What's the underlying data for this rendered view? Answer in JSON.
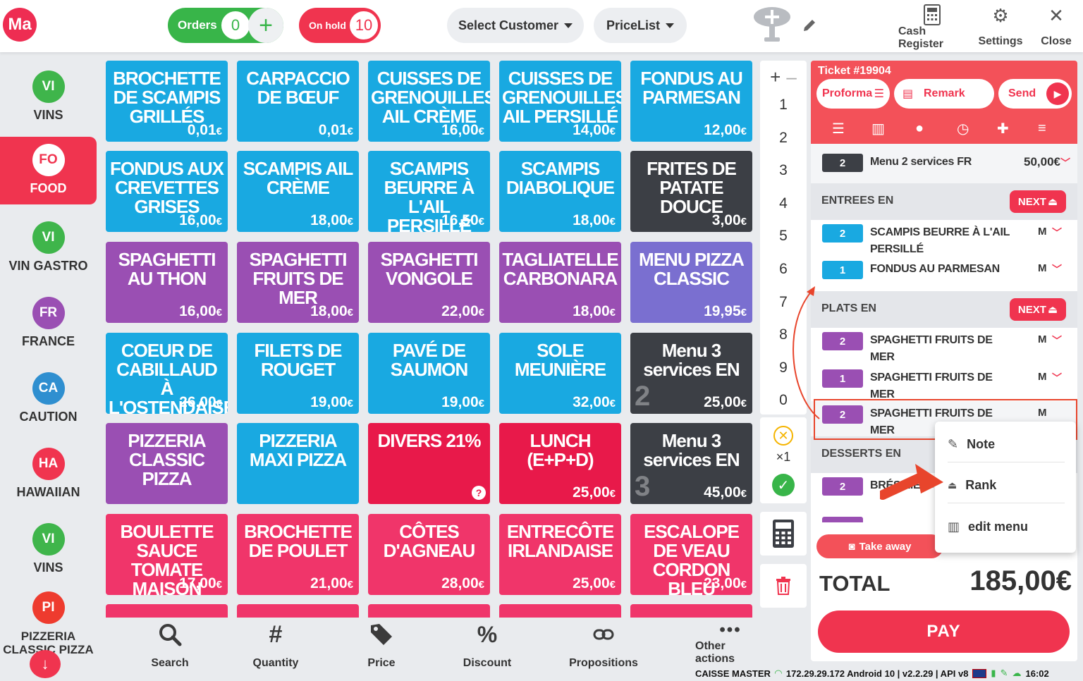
{
  "topbar": {
    "logo": "Ma",
    "orders_label": "Orders",
    "orders_count": "0",
    "onhold_label": "On hold",
    "onhold_count": "10",
    "select_customer": "Select Customer",
    "pricelist": "PriceList",
    "cash_register": "Cash Register",
    "settings": "Settings",
    "close": "Close"
  },
  "categories": [
    {
      "abbr": "VI",
      "name": "VINS",
      "color": "#3fb54b"
    },
    {
      "abbr": "FO",
      "name": "FOOD",
      "color": "#f0344f"
    },
    {
      "abbr": "VI",
      "name": "VIN GASTRO",
      "color": "#3fb54b"
    },
    {
      "abbr": "FR",
      "name": "FRANCE",
      "color": "#9a4fb3"
    },
    {
      "abbr": "CA",
      "name": "CAUTION",
      "color": "#2f8fd0"
    },
    {
      "abbr": "HA",
      "name": "HAWAIIAN",
      "color": "#f0344f"
    },
    {
      "abbr": "VI",
      "name": "VINS",
      "color": "#3fb54b"
    },
    {
      "abbr": "PI",
      "name": "PIZZERIA CLASSIC PIZZA",
      "color": "#ee3b2e"
    }
  ],
  "products": [
    {
      "name": "BROCHETTE DE SCAMPIS GRILLÉS",
      "price": "0,01",
      "cur": "€",
      "color": "#19a9e1"
    },
    {
      "name": "CARPACCIO DE BŒUF",
      "price": "0,01",
      "cur": "€",
      "color": "#19a9e1"
    },
    {
      "name": "CUISSES DE GRENOUILLES AIL CRÈME",
      "price": "16,00",
      "cur": "€",
      "color": "#19a9e1"
    },
    {
      "name": "CUISSES DE GRENOUILLES AIL PERSILLÉ",
      "price": "14,00",
      "cur": "€",
      "color": "#19a9e1"
    },
    {
      "name": "FONDUS AU PARMESAN",
      "price": "12,00",
      "cur": "€",
      "color": "#19a9e1"
    },
    {
      "name": "FONDUS AUX CREVETTES GRISES",
      "price": "16,00",
      "cur": "€",
      "color": "#19a9e1"
    },
    {
      "name": "SCAMPIS AIL CRÈME",
      "price": "18,00",
      "cur": "€",
      "color": "#19a9e1"
    },
    {
      "name": "SCAMPIS BEURRE À L'AIL PERSILLÉ",
      "price": "16,50",
      "cur": "€",
      "color": "#19a9e1"
    },
    {
      "name": "SCAMPIS DIABOLIQUE",
      "price": "18,00",
      "cur": "€",
      "color": "#19a9e1"
    },
    {
      "name": "FRITES DE PATATE DOUCE",
      "price": "3,00",
      "cur": "€",
      "color": "#3c3f45"
    },
    {
      "name": "SPAGHETTI AU THON",
      "price": "16,00",
      "cur": "€",
      "color": "#9a4fb3"
    },
    {
      "name": "SPAGHETTI FRUITS DE MER",
      "price": "18,00",
      "cur": "€",
      "color": "#9a4fb3"
    },
    {
      "name": "SPAGHETTI VONGOLE",
      "price": "22,00",
      "cur": "€",
      "color": "#9a4fb3"
    },
    {
      "name": "TAGLIATELLE CARBONARA",
      "price": "18,00",
      "cur": "€",
      "color": "#9a4fb3"
    },
    {
      "name": "MENU PIZZA CLASSIC",
      "price": "19,95",
      "cur": "€",
      "color": "#7a6fd0"
    },
    {
      "name": "COEUR DE CABILLAUD À L'OSTENDAISE",
      "price": "26,00",
      "cur": "€",
      "color": "#19a9e1"
    },
    {
      "name": "FILETS DE ROUGET",
      "price": "19,00",
      "cur": "€",
      "color": "#19a9e1"
    },
    {
      "name": "PAVÉ DE SAUMON",
      "price": "19,00",
      "cur": "€",
      "color": "#19a9e1"
    },
    {
      "name": "SOLE MEUNIÈRE",
      "price": "32,00",
      "cur": "€",
      "color": "#19a9e1"
    },
    {
      "name": "Menu 3 services EN",
      "price": "25,00",
      "cur": "€",
      "color": "#3c3f45",
      "big": "2"
    },
    {
      "name": "PIZZERIA CLASSIC PIZZA",
      "price": "",
      "cur": "",
      "color": "#9a4fb3"
    },
    {
      "name": "PIZZERIA MAXI PIZZA",
      "price": "",
      "cur": "",
      "color": "#19a9e1"
    },
    {
      "name": "DIVERS 21%",
      "price": "",
      "cur": "",
      "color": "#e8194a",
      "q": "?"
    },
    {
      "name": "LUNCH (E+P+D)",
      "price": "25,00",
      "cur": "€",
      "color": "#e8194a"
    },
    {
      "name": "Menu 3 services EN",
      "price": "45,00",
      "cur": "€",
      "color": "#3c3f45",
      "big": "3"
    },
    {
      "name": "BOULETTE SAUCE TOMATE MAISON",
      "price": "17,00",
      "cur": "€",
      "color": "#f0356a"
    },
    {
      "name": "BROCHETTE DE POULET",
      "price": "21,00",
      "cur": "€",
      "color": "#f0356a"
    },
    {
      "name": "CÔTES D'AGNEAU",
      "price": "28,00",
      "cur": "€",
      "color": "#f0356a"
    },
    {
      "name": "ENTRECÔTE IRLANDAISE",
      "price": "25,00",
      "cur": "€",
      "color": "#f0356a"
    },
    {
      "name": "ESCALOPE DE VEAU CORDON BLEU",
      "price": "23,00",
      "cur": "€",
      "color": "#f0356a"
    }
  ],
  "keypad": [
    "1",
    "2",
    "3",
    "4",
    "5",
    "6",
    "7",
    "8",
    "9",
    "0"
  ],
  "multiplier": "×1",
  "ticket": {
    "number": "Ticket #19904",
    "proforma": "Proforma",
    "remark": "Remark",
    "send": "Send",
    "menu_qty": "2",
    "menu_name": "Menu 2 services FR",
    "menu_price": "50,00€",
    "sections": {
      "entrees": "ENTREES EN",
      "plats": "PLATS EN",
      "desserts": "DESSERTS EN",
      "next": "NEXT"
    },
    "entrees": [
      {
        "qty": "2",
        "name": "SCAMPIS BEURRE À L'AIL PERSILLÉ",
        "mod": "M"
      },
      {
        "qty": "1",
        "name": "FONDUS AU PARMESAN",
        "mod": "M"
      }
    ],
    "plats": [
      {
        "qty": "2",
        "name": "SPAGHETTI FRUITS DE MER",
        "mod": "M"
      },
      {
        "qty": "1",
        "name": "SPAGHETTI FRUITS DE MER",
        "mod": "M"
      },
      {
        "qty": "2",
        "name": "SPAGHETTI FRUITS DE MER",
        "mod": "M"
      }
    ],
    "desserts": [
      {
        "qty": "2",
        "name": "BRÉSILIENNE"
      }
    ],
    "take_away": "Take away",
    "total_label": "TOTAL",
    "total_value": "185,00€",
    "pay": "PAY"
  },
  "context_menu": {
    "note": "Note",
    "rank": "Rank",
    "edit_menu": "edit menu"
  },
  "bottombar": {
    "search": "Search",
    "quantity": "Quantity",
    "price": "Price",
    "discount": "Discount",
    "propositions": "Propositions",
    "other_actions": "Other actions"
  },
  "status": {
    "device": "CAISSE MASTER",
    "info": "172.29.29.172 Android 10 | v2.2.29 | API v8",
    "time": "16:02"
  },
  "colors": {
    "accent": "#f0344f",
    "green": "#38b549",
    "blue": "#19a9e1",
    "purple": "#9a4fb3",
    "dark": "#3c3f45"
  }
}
